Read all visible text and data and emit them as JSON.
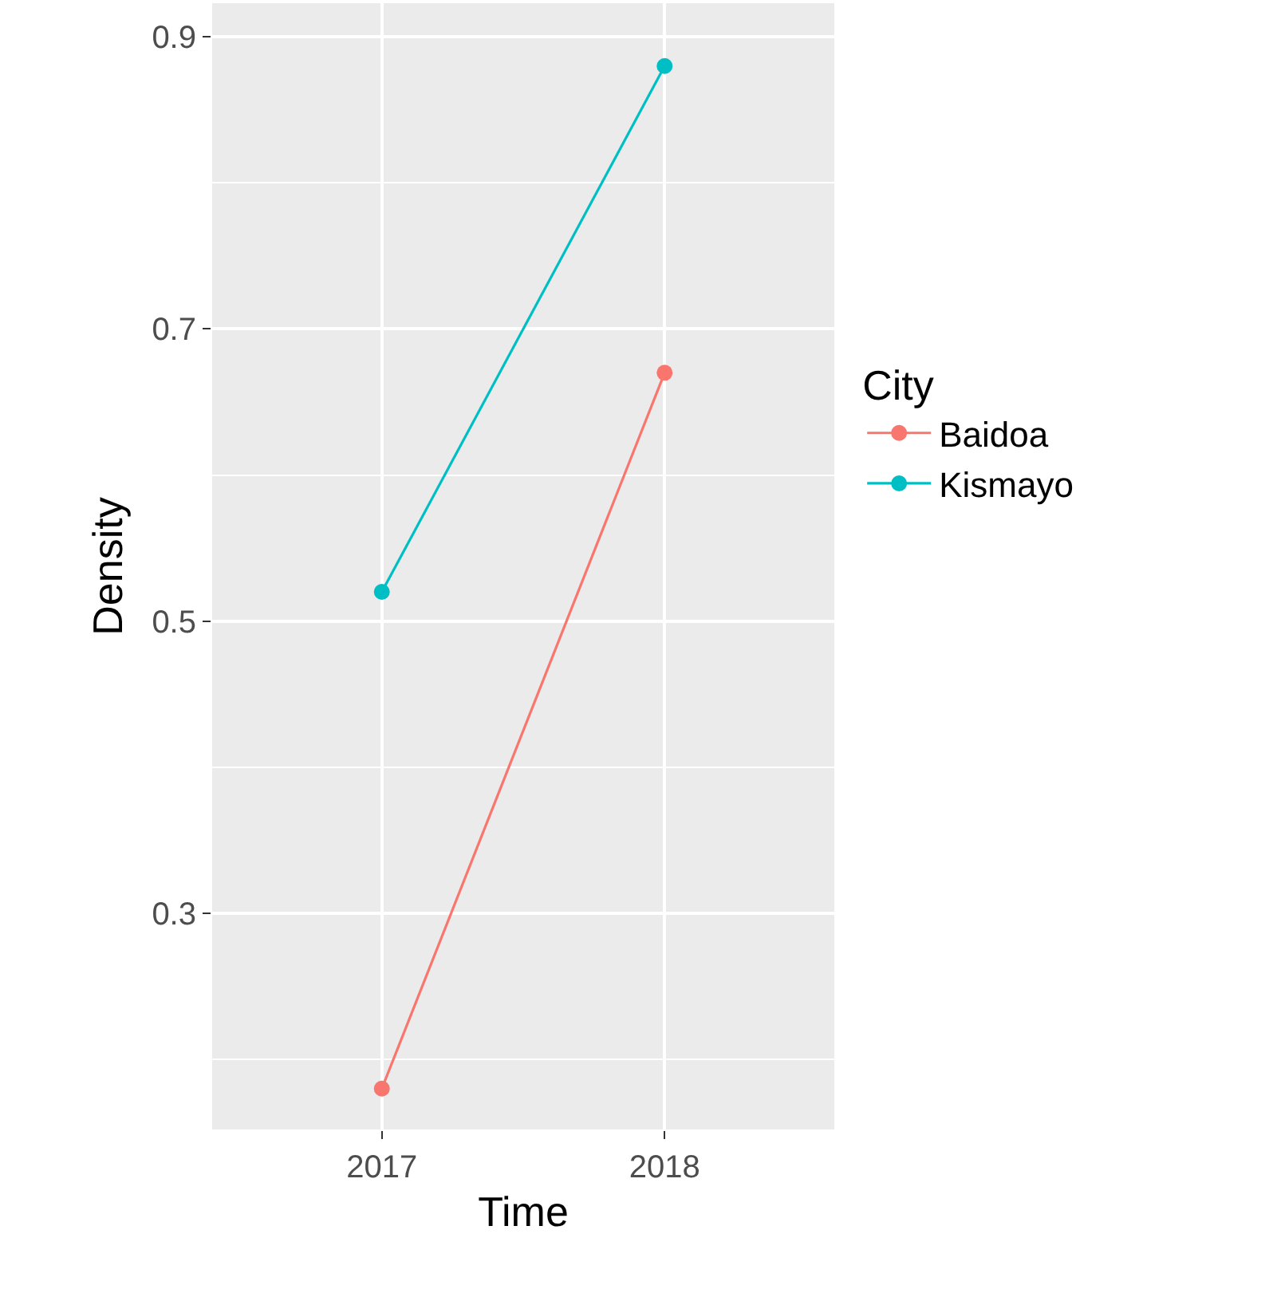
{
  "chart_data": {
    "type": "line",
    "xlabel": "Time",
    "ylabel": "Density",
    "legend_title": "City",
    "categories": [
      "2017",
      "2018"
    ],
    "series": [
      {
        "name": "Baidoa",
        "color": "#f8766d",
        "values": [
          0.18,
          0.67
        ]
      },
      {
        "name": "Kismayo",
        "color": "#00bfc4",
        "values": [
          0.52,
          0.88
        ]
      }
    ],
    "ylim": [
      0.152,
      0.923
    ],
    "yticks": [
      0.3,
      0.5,
      0.7,
      0.9
    ],
    "grid": true,
    "legend": "right",
    "marker": "circle",
    "line_style": "solid"
  }
}
